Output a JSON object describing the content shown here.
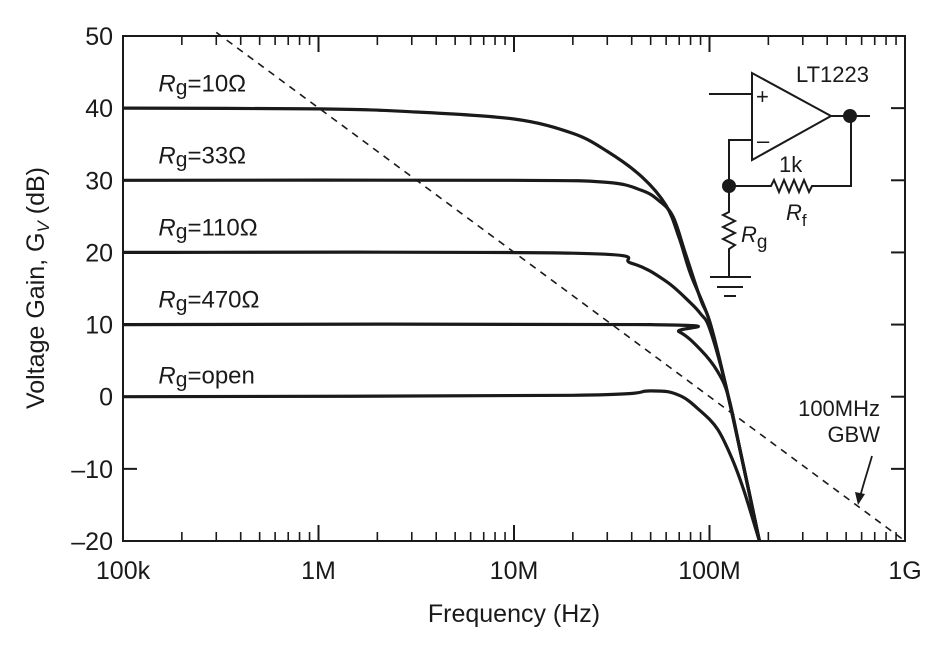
{
  "chart_data": {
    "type": "line",
    "title": "",
    "xlabel": "Frequency (Hz)",
    "ylabel": {
      "main": "Voltage Gain, G",
      "sub": "V",
      "unit": " (dB)"
    },
    "xscale": "log",
    "xlim": [
      100000,
      1000000000
    ],
    "ylim": [
      -20,
      50
    ],
    "grid": false,
    "x_ticks": [
      {
        "value": 100000,
        "label": "100k"
      },
      {
        "value": 1000000,
        "label": "1M"
      },
      {
        "value": 10000000,
        "label": "10M"
      },
      {
        "value": 100000000,
        "label": "100M"
      },
      {
        "value": 1000000000,
        "label": "1G"
      }
    ],
    "y_ticks": [
      {
        "value": 50,
        "label": "50"
      },
      {
        "value": 40,
        "label": "40"
      },
      {
        "value": 30,
        "label": "30"
      },
      {
        "value": 20,
        "label": "20"
      },
      {
        "value": 10,
        "label": "10"
      },
      {
        "value": 0,
        "label": "0"
      },
      {
        "value": -10,
        "label": "–10"
      },
      {
        "value": -20,
        "label": "–20"
      }
    ],
    "series": [
      {
        "name": "Rg=10Ω",
        "label": {
          "R": "R",
          "sub": "g",
          "rest": "=10Ω"
        },
        "label_at": [
          150000,
          44
        ],
        "points": [
          [
            100000.0,
            40
          ],
          [
            1000000.0,
            39.9
          ],
          [
            3000000.0,
            39.5
          ],
          [
            10000000.0,
            38.5
          ],
          [
            20000000.0,
            36.5
          ],
          [
            30000000.0,
            34
          ],
          [
            45000000.0,
            30.5
          ],
          [
            60000000.0,
            26.5
          ],
          [
            70000000.0,
            22
          ],
          [
            80000000.0,
            17
          ],
          [
            100000000.0,
            10.5
          ],
          [
            120000000.0,
            2
          ],
          [
            145000000.0,
            -8
          ],
          [
            180000000.0,
            -20
          ]
        ]
      },
      {
        "name": "Rg=33Ω",
        "label": {
          "R": "R",
          "sub": "g",
          "rest": "=33Ω"
        },
        "label_at": [
          150000,
          34
        ],
        "points": [
          [
            100000.0,
            30
          ],
          [
            10000000.0,
            30
          ],
          [
            30000000.0,
            29.7
          ],
          [
            45000000.0,
            28.6
          ],
          [
            55000000.0,
            27.2
          ],
          [
            65000000.0,
            25
          ],
          [
            75000000.0,
            20
          ],
          [
            90000000.0,
            13.5
          ],
          [
            100000000.0,
            10.5
          ],
          [
            120000000.0,
            2
          ],
          [
            145000000.0,
            -8
          ],
          [
            180000000.0,
            -20
          ]
        ]
      },
      {
        "name": "Rg=110Ω",
        "label": {
          "R": "R",
          "sub": "g",
          "rest": "=110Ω"
        },
        "label_at": [
          150000,
          24
        ],
        "points": [
          [
            100000.0,
            20
          ],
          [
            20000000.0,
            19.9
          ],
          [
            40000000.0,
            18.5
          ],
          [
            60000000.0,
            16
          ],
          [
            80000000.0,
            13
          ],
          [
            90000000.0,
            11.5
          ],
          [
            100000000.0,
            9.5
          ],
          [
            120000000.0,
            2
          ],
          [
            145000000.0,
            -8
          ],
          [
            180000000.0,
            -20
          ]
        ]
      },
      {
        "name": "Rg=470Ω",
        "label": {
          "R": "R",
          "sub": "g",
          "rest": "=470Ω"
        },
        "label_at": [
          150000,
          14
        ],
        "points": [
          [
            100000.0,
            10
          ],
          [
            50000000.0,
            10
          ],
          [
            70000000.0,
            9
          ],
          [
            90000000.0,
            6.5
          ],
          [
            110000000.0,
            3.5
          ],
          [
            125000000.0,
            0
          ],
          [
            145000000.0,
            -8
          ],
          [
            180000000.0,
            -20
          ]
        ]
      },
      {
        "name": "Rg=open",
        "label": {
          "R": "R",
          "sub": "g",
          "rest": "=open"
        },
        "label_at": [
          150000,
          3.5
        ],
        "points": [
          [
            100000.0,
            0
          ],
          [
            20000000.0,
            0.2
          ],
          [
            50000000.0,
            0.8
          ],
          [
            70000000.0,
            0.2
          ],
          [
            90000000.0,
            -2
          ],
          [
            110000000.0,
            -4.5
          ],
          [
            130000000.0,
            -8.5
          ],
          [
            150000000.0,
            -13
          ],
          [
            180000000.0,
            -20
          ]
        ]
      }
    ],
    "reference_line": {
      "name": "100MHz GBW",
      "style": "dashed",
      "points": [
        [
          300000,
          50.5
        ],
        [
          1000000000.0,
          -20
        ]
      ],
      "annotation": [
        "100MHz",
        "GBW"
      ]
    }
  },
  "circuit": {
    "part": "LT1223",
    "plus": "+",
    "minus": "–",
    "rf_value": "1k",
    "rf_label": {
      "R": "R",
      "sub": "f"
    },
    "rg_label": {
      "R": "R",
      "sub": "g"
    }
  }
}
